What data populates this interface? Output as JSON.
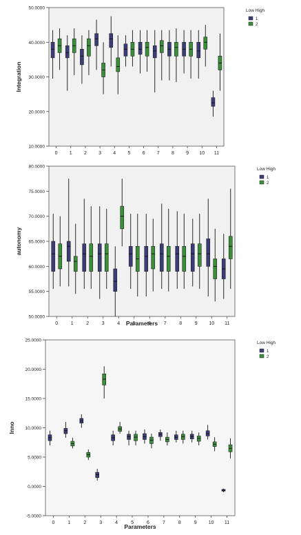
{
  "chart_data": [
    {
      "type": "boxplot",
      "title": "",
      "ylabel": "Integration",
      "xlabel": "",
      "categories": [
        "0",
        "1",
        "2",
        "3",
        "4",
        "5",
        "6",
        "7",
        "8",
        "9",
        "10",
        "11"
      ],
      "ylim": [
        10,
        50
      ],
      "yticks": [
        10,
        20,
        30,
        40,
        50
      ],
      "ytick_labels": [
        "10.0000",
        "20.0000",
        "30.0000",
        "40.0000",
        "50.0000"
      ],
      "legend_title": "Low High",
      "legend_position": "top-right",
      "series": [
        {
          "name": "1",
          "color": "#3b3c78",
          "boxes": [
            {
              "min": 29.5,
              "q1": 35.5,
              "median": 38,
              "q3": 40,
              "max": 43.5
            },
            {
              "min": 26,
              "q1": 35.5,
              "median": 37,
              "q3": 39,
              "max": 42
            },
            {
              "min": 28,
              "q1": 33.5,
              "median": 36,
              "q3": 38,
              "max": 42
            },
            {
              "min": 32,
              "q1": 39,
              "median": 41,
              "q3": 42.5,
              "max": 46.5
            },
            {
              "min": 33,
              "q1": 38.5,
              "median": 41,
              "q3": 42.5,
              "max": 47.5
            },
            {
              "min": 33,
              "q1": 36,
              "median": 38,
              "q3": 39.5,
              "max": 42
            },
            {
              "min": 31,
              "q1": 36.5,
              "median": 38,
              "q3": 40,
              "max": 43.5
            },
            {
              "min": 25.5,
              "q1": 35.5,
              "median": 37.5,
              "q3": 39,
              "max": 43.5
            },
            {
              "min": 29,
              "q1": 36,
              "median": 38,
              "q3": 40,
              "max": 43.5
            },
            {
              "min": 31,
              "q1": 36,
              "median": 38,
              "q3": 40,
              "max": 43.5
            },
            {
              "min": 29.5,
              "q1": 35.5,
              "median": 37.5,
              "q3": 40,
              "max": 43.5
            },
            {
              "min": 18.5,
              "q1": 21.5,
              "median": 22.5,
              "q3": 24,
              "max": 26
            }
          ]
        },
        {
          "name": "2",
          "color": "#3a8f3a",
          "boxes": [
            {
              "min": 32,
              "q1": 37,
              "median": 39,
              "q3": 41,
              "max": 44
            },
            {
              "min": 30.5,
              "q1": 37,
              "median": 39,
              "q3": 41,
              "max": 44
            },
            {
              "min": 30.5,
              "q1": 36,
              "median": 39,
              "q3": 41,
              "max": 43.5
            },
            {
              "min": 25,
              "q1": 30,
              "median": 32,
              "q3": 34,
              "max": 40
            },
            {
              "min": 25,
              "q1": 31.5,
              "median": 33,
              "q3": 35.5,
              "max": 42
            },
            {
              "min": 33,
              "q1": 36,
              "median": 38,
              "q3": 40,
              "max": 43.5
            },
            {
              "min": 31.5,
              "q1": 36,
              "median": 38.5,
              "q3": 40,
              "max": 43.5
            },
            {
              "min": 29,
              "q1": 37,
              "median": 39,
              "q3": 40.5,
              "max": 43.5
            },
            {
              "min": 28.5,
              "q1": 36,
              "median": 38.5,
              "q3": 40,
              "max": 44
            },
            {
              "min": 29.5,
              "q1": 36,
              "median": 38,
              "q3": 40,
              "max": 43.5
            },
            {
              "min": 33,
              "q1": 38,
              "median": 40,
              "q3": 41.5,
              "max": 45
            },
            {
              "min": 26,
              "q1": 32,
              "median": 34,
              "q3": 36,
              "max": 42.5
            }
          ]
        }
      ]
    },
    {
      "type": "boxplot",
      "title": "",
      "ylabel": "autonomy",
      "xlabel": "Parameters",
      "categories": [
        "0",
        "1",
        "2",
        "3",
        "4",
        "5",
        "6",
        "7",
        "8",
        "9",
        "10",
        "11"
      ],
      "ylim": [
        50,
        80
      ],
      "yticks": [
        50,
        55,
        60,
        65,
        70,
        75,
        80
      ],
      "ytick_labels": [
        "50.0000",
        "55.0000",
        "60.0000",
        "65.0000",
        "70.0000",
        "75.0000",
        "80.0000"
      ],
      "legend_title": "Low High",
      "legend_position": "top-right",
      "series": [
        {
          "name": "1",
          "color": "#3b3c78",
          "boxes": [
            {
              "min": 55.5,
              "q1": 59,
              "median": 62.5,
              "q3": 65,
              "max": 70.5
            },
            {
              "min": 56,
              "q1": 61,
              "median": 64,
              "q3": 65,
              "max": 77.5
            },
            {
              "min": 55.5,
              "q1": 59,
              "median": 62.5,
              "q3": 64.5,
              "max": 73.5
            },
            {
              "min": 53.5,
              "q1": 59,
              "median": 62.5,
              "q3": 64.5,
              "max": 72
            },
            {
              "min": 50,
              "q1": 55,
              "median": 57,
              "q3": 59.5,
              "max": 64
            },
            {
              "min": 55.5,
              "q1": 60,
              "median": 62.5,
              "q3": 64,
              "max": 70.5
            },
            {
              "min": 54,
              "q1": 59,
              "median": 62,
              "q3": 64,
              "max": 70.5
            },
            {
              "min": 55.5,
              "q1": 59,
              "median": 62.5,
              "q3": 64.5,
              "max": 72.5
            },
            {
              "min": 55.5,
              "q1": 59,
              "median": 62.5,
              "q3": 64,
              "max": 71
            },
            {
              "min": 56,
              "q1": 59,
              "median": 62.5,
              "q3": 64.5,
              "max": 69.5
            },
            {
              "min": 54,
              "q1": 60,
              "median": 62.5,
              "q3": 65.5,
              "max": 73.5
            },
            {
              "min": 53.5,
              "q1": 57.5,
              "median": 59.5,
              "q3": 61.5,
              "max": 66.5
            }
          ]
        },
        {
          "name": "2",
          "color": "#3a8f3a",
          "boxes": [
            {
              "min": 56,
              "q1": 59.5,
              "median": 62,
              "q3": 64.5,
              "max": 70
            },
            {
              "min": 54.5,
              "q1": 59,
              "median": 61,
              "q3": 62,
              "max": 68.5
            },
            {
              "min": 55.5,
              "q1": 59,
              "median": 62,
              "q3": 64.5,
              "max": 72
            },
            {
              "min": 55.5,
              "q1": 59,
              "median": 62.5,
              "q3": 64.5,
              "max": 71.5
            },
            {
              "min": 64,
              "q1": 67.5,
              "median": 70,
              "q3": 72,
              "max": 77.5
            },
            {
              "min": 54,
              "q1": 59,
              "median": 61.5,
              "q3": 64,
              "max": 70.5
            },
            {
              "min": 55,
              "q1": 59.5,
              "median": 62.5,
              "q3": 64,
              "max": 69.5
            },
            {
              "min": 55,
              "q1": 59,
              "median": 62,
              "q3": 64,
              "max": 71.5
            },
            {
              "min": 55.5,
              "q1": 59,
              "median": 62,
              "q3": 64,
              "max": 70.5
            },
            {
              "min": 55.5,
              "q1": 60,
              "median": 62.5,
              "q3": 64.5,
              "max": 70.5
            },
            {
              "min": 53,
              "q1": 57.5,
              "median": 60,
              "q3": 61.5,
              "max": 67.5
            },
            {
              "min": 55.5,
              "q1": 61.5,
              "median": 64,
              "q3": 66,
              "max": 75.5
            }
          ]
        }
      ]
    },
    {
      "type": "boxplot",
      "title": "",
      "ylabel": "Inno",
      "xlabel": "Parameters",
      "categories": [
        "0",
        "1",
        "2",
        "3",
        "4",
        "5",
        "6",
        "7",
        "8",
        "9",
        "10",
        "11"
      ],
      "ylim": [
        -5,
        25
      ],
      "yticks": [
        -5,
        0,
        5,
        10,
        15,
        20,
        25
      ],
      "ytick_labels": [
        "-5.0000",
        "0.0000",
        "5.0000",
        "10.0000",
        "15.0000",
        "20.0000",
        "25.0000"
      ],
      "legend_title": "Low High",
      "legend_position": "top-right",
      "series": [
        {
          "name": "1",
          "color": "#3b3c78",
          "boxes": [
            {
              "min": 7,
              "q1": 7.8,
              "median": 8.3,
              "q3": 8.8,
              "max": 9.5
            },
            {
              "min": 8.3,
              "q1": 9,
              "median": 9.5,
              "q3": 9.9,
              "max": 11
            },
            {
              "min": 10,
              "q1": 10.8,
              "median": 11.2,
              "q3": 11.6,
              "max": 12.3
            },
            {
              "min": 1,
              "q1": 1.5,
              "median": 2,
              "q3": 2.4,
              "max": 3
            },
            {
              "min": 7,
              "q1": 7.8,
              "median": 8.3,
              "q3": 8.8,
              "max": 9.5
            },
            {
              "min": 7,
              "q1": 8,
              "median": 8.5,
              "q3": 8.9,
              "max": 9.5
            },
            {
              "min": 7.3,
              "q1": 8,
              "median": 8.5,
              "q3": 9,
              "max": 9.7
            },
            {
              "min": 7.8,
              "q1": 8.5,
              "median": 8.9,
              "q3": 9.2,
              "max": 9.7
            },
            {
              "min": 7.5,
              "q1": 8,
              "median": 8.4,
              "q3": 8.8,
              "max": 9.5
            },
            {
              "min": 7.5,
              "q1": 8.1,
              "median": 8.5,
              "q3": 8.9,
              "max": 9.5
            },
            {
              "min": 8,
              "q1": 8.6,
              "median": 9,
              "q3": 9.5,
              "max": 10.5
            },
            {
              "min": -1,
              "q1": -0.8,
              "median": -0.7,
              "q3": -0.5,
              "max": -0.4
            }
          ]
        },
        {
          "name": "2",
          "color": "#3a8f3a",
          "boxes": [
            {
              "min": null
            },
            {
              "min": 6.5,
              "q1": 6.9,
              "median": 7.3,
              "q3": 7.7,
              "max": 8.3
            },
            {
              "min": 4.5,
              "q1": 5,
              "median": 5.4,
              "q3": 5.8,
              "max": 6.3
            },
            {
              "min": 15,
              "q1": 17.3,
              "median": 18.3,
              "q3": 19.2,
              "max": 20.5
            },
            {
              "min": 9,
              "q1": 9.4,
              "median": 9.8,
              "q3": 10.2,
              "max": 11
            },
            {
              "min": 7,
              "q1": 7.8,
              "median": 8.4,
              "q3": 8.9,
              "max": 9.5
            },
            {
              "min": 6.5,
              "q1": 7.3,
              "median": 7.9,
              "q3": 8.4,
              "max": 9
            },
            {
              "min": 7,
              "q1": 7.6,
              "median": 8,
              "q3": 8.4,
              "max": 9.2
            },
            {
              "min": 7.3,
              "q1": 8,
              "median": 8.5,
              "q3": 8.9,
              "max": 9.5
            },
            {
              "min": 7,
              "q1": 7.7,
              "median": 8.2,
              "q3": 8.6,
              "max": 9.2
            },
            {
              "min": 6,
              "q1": 6.8,
              "median": 7.2,
              "q3": 7.6,
              "max": 8.4
            },
            {
              "min": 4.8,
              "q1": 5.9,
              "median": 6.5,
              "q3": 7.1,
              "max": 8.2
            }
          ]
        }
      ]
    }
  ]
}
